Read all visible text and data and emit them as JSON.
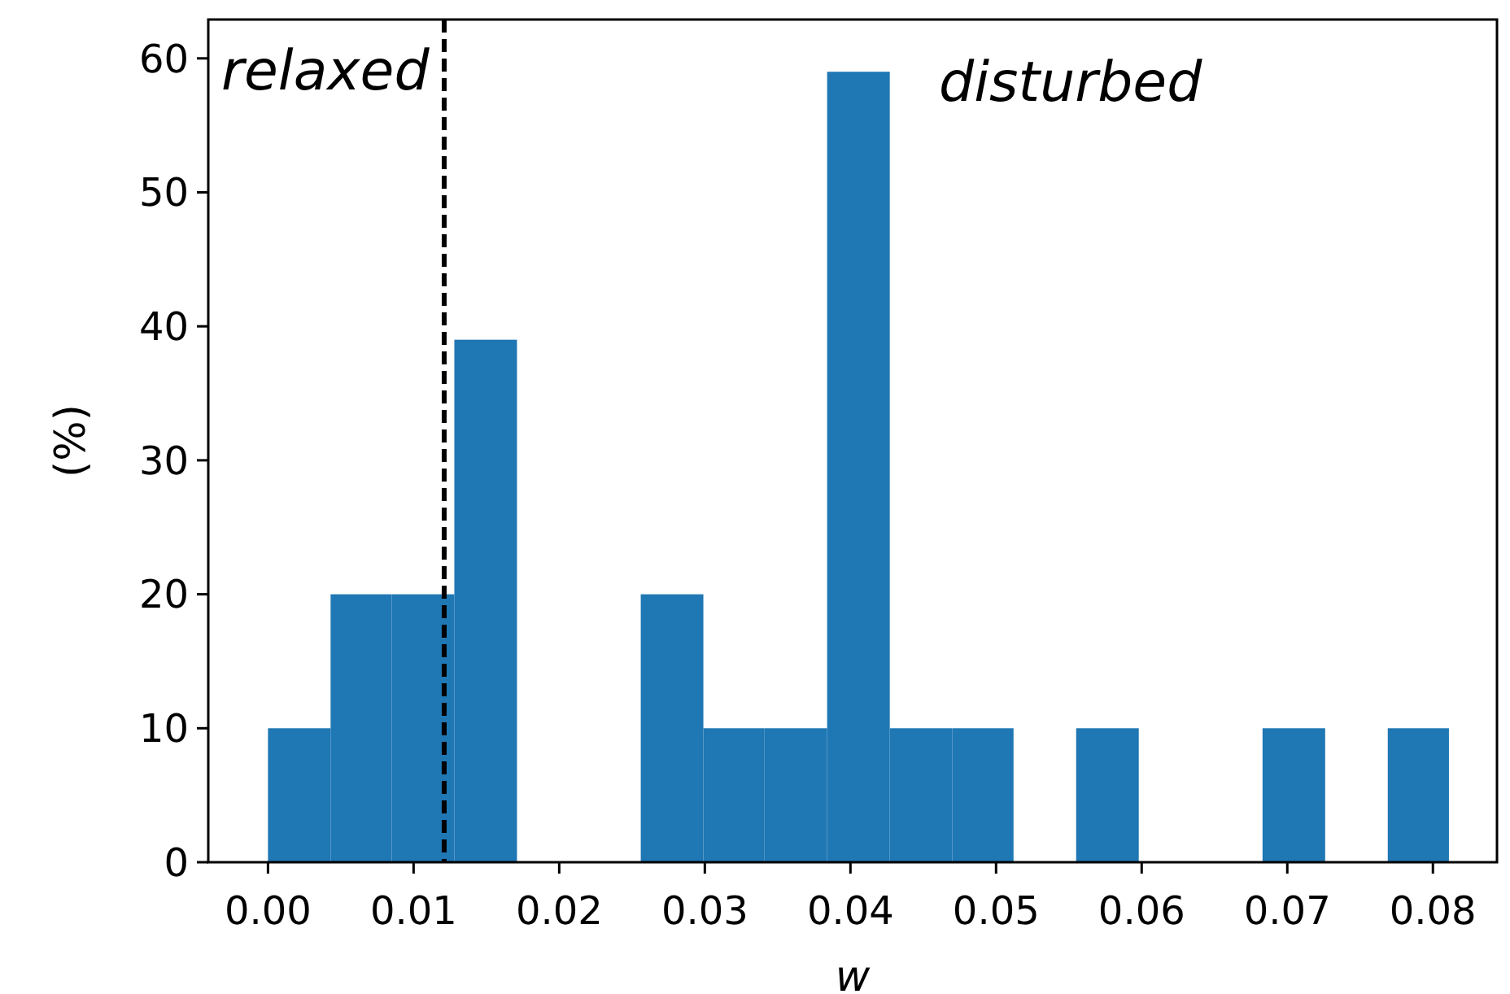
{
  "chart_data": {
    "type": "histogram",
    "xlabel": "w",
    "ylabel": "(%)",
    "bins": [
      0,
      0.0043,
      0.0085,
      0.0128,
      0.0171,
      0.0256,
      0.0299,
      0.0341,
      0.0384,
      0.0427,
      0.047,
      0.0512,
      0.0555,
      0.0598,
      0.0683,
      0.0726,
      0.0769,
      0.0811
    ],
    "values": [
      10,
      20,
      20,
      39,
      0,
      20,
      10,
      10,
      59,
      10,
      10,
      0,
      10,
      0,
      10,
      0,
      10
    ],
    "color": "#1f77b4",
    "xlim": [
      -0.0041,
      0.0844
    ],
    "ylim": [
      0,
      62.9
    ],
    "xticks": [
      {
        "value": 0,
        "label": "0.00"
      },
      {
        "value": 0.01,
        "label": "0.01"
      },
      {
        "value": 0.02,
        "label": "0.02"
      },
      {
        "value": 0.03,
        "label": "0.03"
      },
      {
        "value": 0.04,
        "label": "0.04"
      },
      {
        "value": 0.05,
        "label": "0.05"
      },
      {
        "value": 0.06,
        "label": "0.06"
      },
      {
        "value": 0.07,
        "label": "0.07"
      },
      {
        "value": 0.08,
        "label": "0.08"
      }
    ],
    "yticks": [
      0,
      10,
      20,
      30,
      40,
      50,
      60
    ],
    "ref_lines": [
      {
        "axis": "x",
        "value": 0.0121,
        "color": "#000000",
        "line_style": "dashed"
      }
    ],
    "annotations": [
      "relaxed",
      "disturbed"
    ],
    "grid": false
  }
}
